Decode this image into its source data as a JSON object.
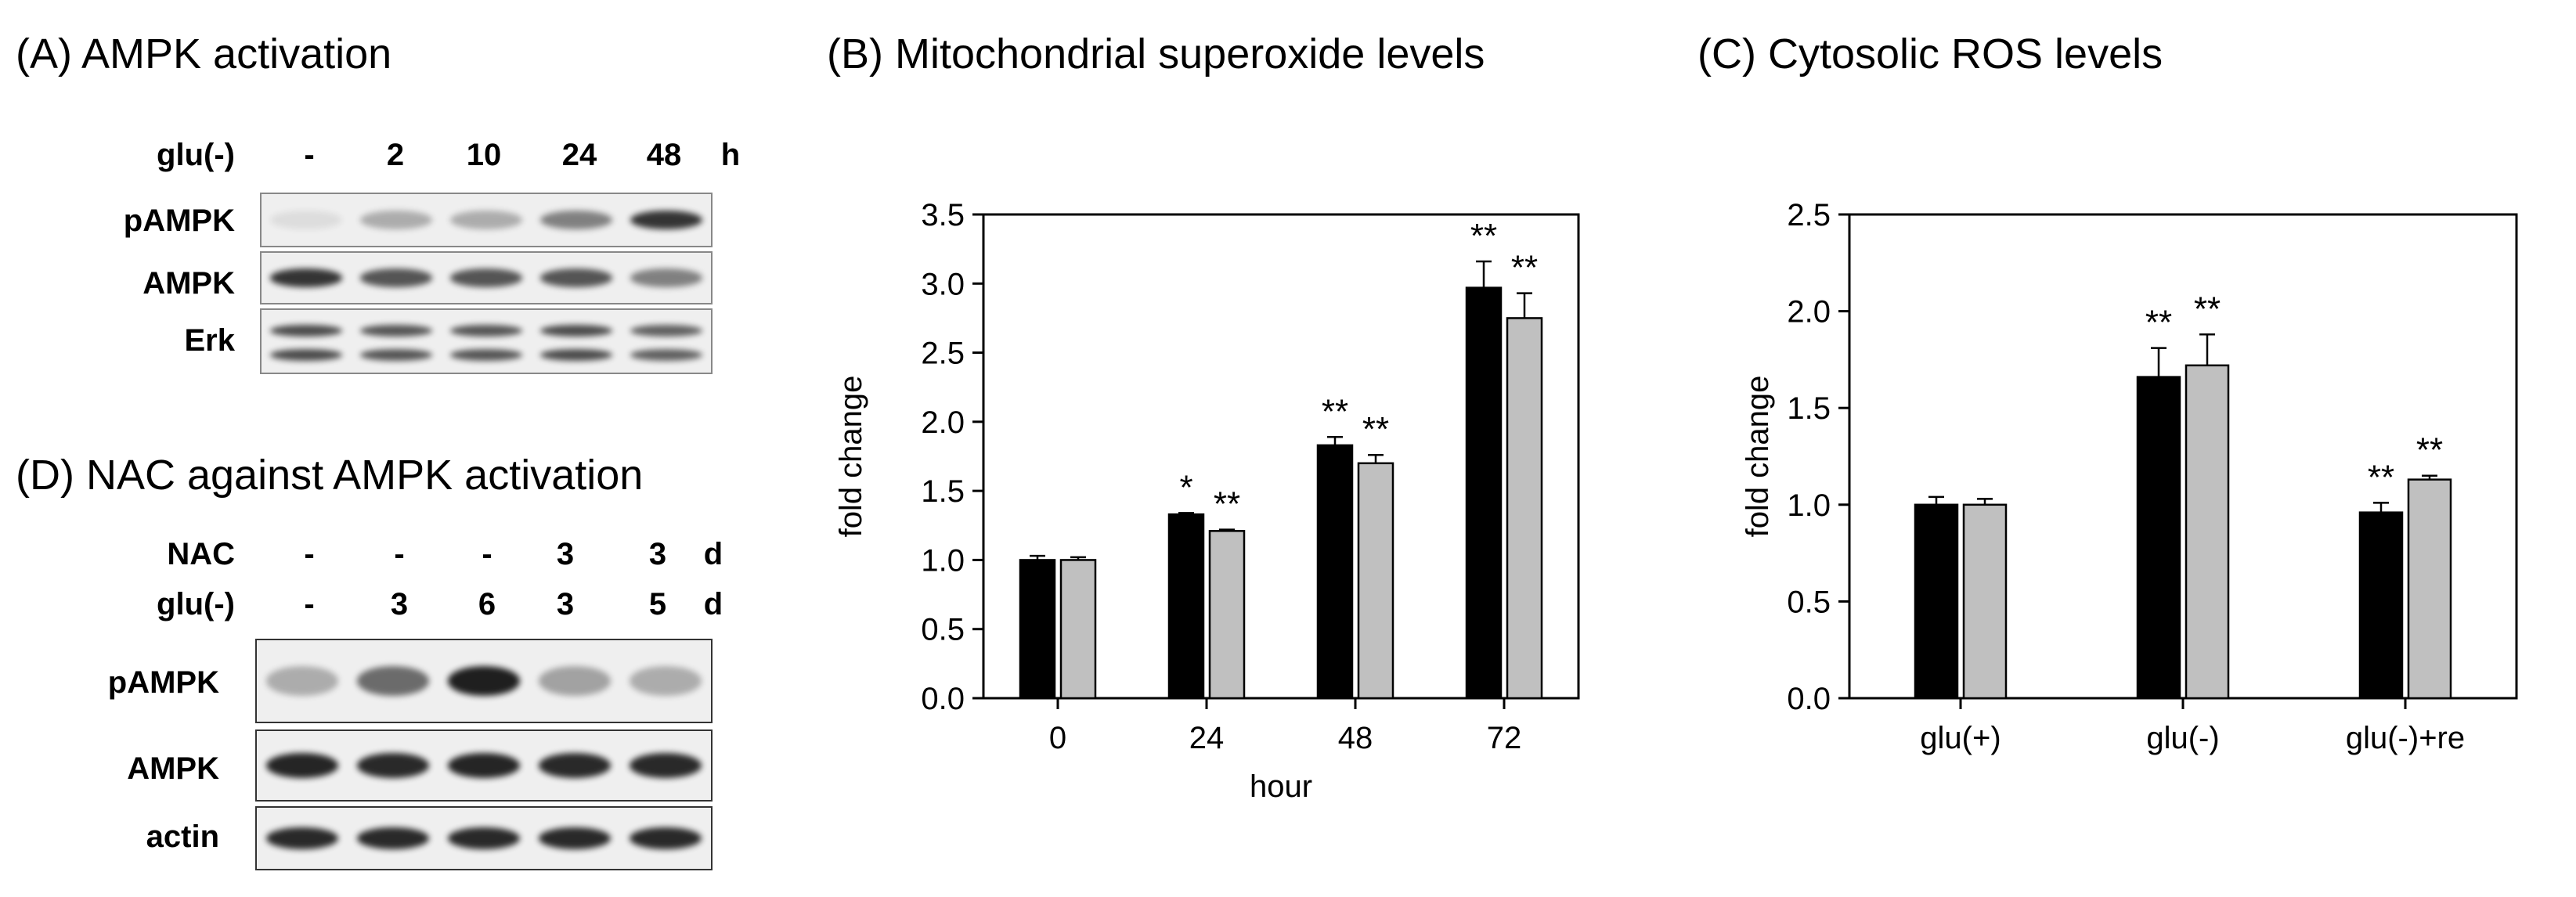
{
  "panel_a": {
    "title": "(A) AMPK activation",
    "row_label": "glu(-)",
    "lanes": [
      "-",
      "2",
      "10",
      "24",
      "48"
    ],
    "unit": "h",
    "blots": [
      {
        "label": "pAMPK",
        "intensities": [
          0.08,
          0.3,
          0.3,
          0.5,
          0.85
        ]
      },
      {
        "label": "AMPK",
        "intensities": [
          0.85,
          0.7,
          0.7,
          0.7,
          0.5
        ]
      },
      {
        "label": "Erk",
        "intensities": [
          0.75,
          0.7,
          0.7,
          0.75,
          0.65
        ]
      }
    ]
  },
  "panel_d": {
    "title": "(D) NAC against AMPK activation",
    "rows": [
      {
        "label": "NAC",
        "values": [
          "-",
          "-",
          "-",
          "3",
          "3"
        ],
        "unit": "d"
      },
      {
        "label": "glu(-)",
        "values": [
          "-",
          "3",
          "6",
          "3",
          "5"
        ],
        "unit": "d"
      }
    ],
    "blots": [
      {
        "label": "pAMPK",
        "intensities": [
          0.3,
          0.6,
          0.95,
          0.35,
          0.3
        ]
      },
      {
        "label": "AMPK",
        "intensities": [
          0.92,
          0.9,
          0.92,
          0.9,
          0.9
        ]
      },
      {
        "label": "actin",
        "intensities": [
          0.9,
          0.9,
          0.9,
          0.9,
          0.9
        ]
      }
    ]
  },
  "colors": {
    "series1": "#000000",
    "series2": "#c0c0c0",
    "blot_bg": "#efefef",
    "band": "#141414"
  },
  "chart_data": [
    {
      "type": "bar",
      "title": "(B) Mitochondrial superoxide levels",
      "xlabel": "hour",
      "ylabel": "fold change",
      "ylim": [
        0,
        3.5
      ],
      "yticks": [
        "0.0",
        "0.5",
        "1.0",
        "1.5",
        "2.0",
        "2.5",
        "3.0",
        "3.5"
      ],
      "categories": [
        "0",
        "24",
        "48",
        "72"
      ],
      "series": [
        {
          "name": "black",
          "color": "#000000",
          "values": [
            1.0,
            1.33,
            1.83,
            2.97
          ],
          "errors": [
            0.03,
            0.01,
            0.06,
            0.19
          ],
          "annotations": [
            "",
            "*",
            "**",
            "**"
          ]
        },
        {
          "name": "gray",
          "color": "#c0c0c0",
          "values": [
            1.0,
            1.21,
            1.7,
            2.75
          ],
          "errors": [
            0.02,
            0.01,
            0.06,
            0.18
          ],
          "annotations": [
            "",
            "**",
            "**",
            "**"
          ]
        }
      ]
    },
    {
      "type": "bar",
      "title": "(C) Cytosolic ROS levels",
      "xlabel": "",
      "ylabel": "fold change",
      "ylim": [
        0,
        2.5
      ],
      "yticks": [
        "0.0",
        "0.5",
        "1.0",
        "1.5",
        "2.0",
        "2.5"
      ],
      "categories": [
        "glu(+)",
        "glu(-)",
        "glu(-)+re"
      ],
      "series": [
        {
          "name": "black",
          "color": "#000000",
          "values": [
            1.0,
            1.66,
            0.96
          ],
          "errors": [
            0.04,
            0.15,
            0.05
          ],
          "annotations": [
            "",
            "**",
            "**"
          ]
        },
        {
          "name": "gray",
          "color": "#c0c0c0",
          "values": [
            1.0,
            1.72,
            1.13
          ],
          "errors": [
            0.03,
            0.16,
            0.02
          ],
          "annotations": [
            "",
            "**",
            "**"
          ]
        }
      ]
    }
  ]
}
